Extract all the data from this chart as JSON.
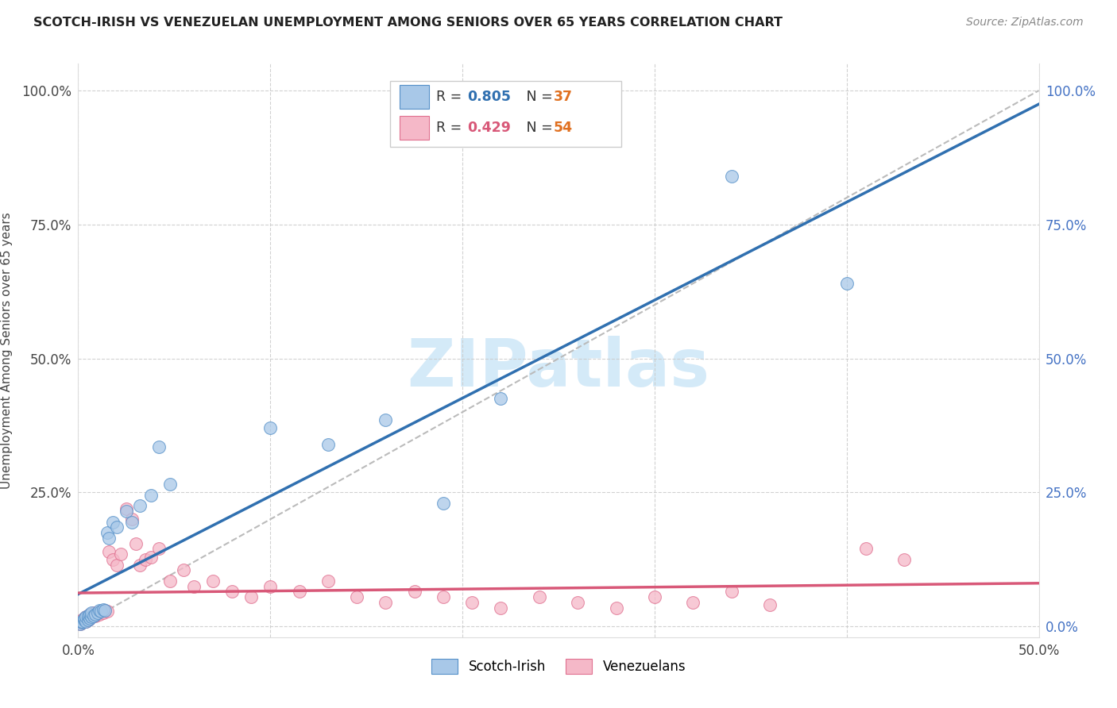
{
  "title": "SCOTCH-IRISH VS VENEZUELAN UNEMPLOYMENT AMONG SENIORS OVER 65 YEARS CORRELATION CHART",
  "source": "Source: ZipAtlas.com",
  "ylabel": "Unemployment Among Seniors over 65 years",
  "xlim": [
    0,
    0.5
  ],
  "ylim": [
    -0.02,
    1.05
  ],
  "scotch_irish_R": 0.805,
  "scotch_irish_N": 37,
  "venezuelan_R": 0.429,
  "venezuelan_N": 54,
  "blue_fill": "#a8c8e8",
  "blue_edge": "#5590c8",
  "blue_line": "#3070b0",
  "pink_fill": "#f5b8c8",
  "pink_edge": "#e07090",
  "pink_line": "#d85878",
  "ref_line_color": "#bbbbbb",
  "watermark": "ZIPatlas",
  "watermark_color": "#d0e8f8",
  "background_color": "#ffffff",
  "grid_color": "#cccccc",
  "right_tick_color": "#4472c4",
  "N_color": "#e07020",
  "scotch_x": [
    0.001,
    0.002,
    0.002,
    0.003,
    0.003,
    0.004,
    0.004,
    0.005,
    0.005,
    0.006,
    0.006,
    0.007,
    0.007,
    0.008,
    0.009,
    0.01,
    0.011,
    0.012,
    0.013,
    0.014,
    0.015,
    0.016,
    0.018,
    0.02,
    0.025,
    0.028,
    0.032,
    0.038,
    0.042,
    0.048,
    0.1,
    0.13,
    0.16,
    0.19,
    0.22,
    0.34,
    0.4
  ],
  "scotch_y": [
    0.005,
    0.008,
    0.01,
    0.012,
    0.015,
    0.01,
    0.018,
    0.012,
    0.02,
    0.015,
    0.022,
    0.018,
    0.025,
    0.02,
    0.022,
    0.025,
    0.03,
    0.028,
    0.032,
    0.03,
    0.175,
    0.165,
    0.195,
    0.185,
    0.215,
    0.195,
    0.225,
    0.245,
    0.335,
    0.265,
    0.37,
    0.34,
    0.385,
    0.23,
    0.425,
    0.84,
    0.64
  ],
  "venezuela_x": [
    0.001,
    0.002,
    0.002,
    0.003,
    0.004,
    0.004,
    0.005,
    0.005,
    0.006,
    0.006,
    0.007,
    0.008,
    0.009,
    0.01,
    0.011,
    0.012,
    0.013,
    0.014,
    0.015,
    0.016,
    0.018,
    0.02,
    0.022,
    0.025,
    0.028,
    0.03,
    0.032,
    0.035,
    0.038,
    0.042,
    0.048,
    0.055,
    0.06,
    0.07,
    0.08,
    0.09,
    0.1,
    0.115,
    0.13,
    0.145,
    0.16,
    0.175,
    0.19,
    0.205,
    0.22,
    0.24,
    0.26,
    0.28,
    0.3,
    0.32,
    0.34,
    0.36,
    0.41,
    0.43
  ],
  "venezuela_y": [
    0.005,
    0.008,
    0.012,
    0.015,
    0.01,
    0.018,
    0.012,
    0.02,
    0.015,
    0.022,
    0.018,
    0.025,
    0.02,
    0.025,
    0.022,
    0.028,
    0.025,
    0.03,
    0.028,
    0.14,
    0.125,
    0.115,
    0.135,
    0.22,
    0.2,
    0.155,
    0.115,
    0.125,
    0.13,
    0.145,
    0.085,
    0.105,
    0.075,
    0.085,
    0.065,
    0.055,
    0.075,
    0.065,
    0.085,
    0.055,
    0.045,
    0.065,
    0.055,
    0.045,
    0.035,
    0.055,
    0.045,
    0.035,
    0.055,
    0.045,
    0.065,
    0.04,
    0.145,
    0.125
  ]
}
